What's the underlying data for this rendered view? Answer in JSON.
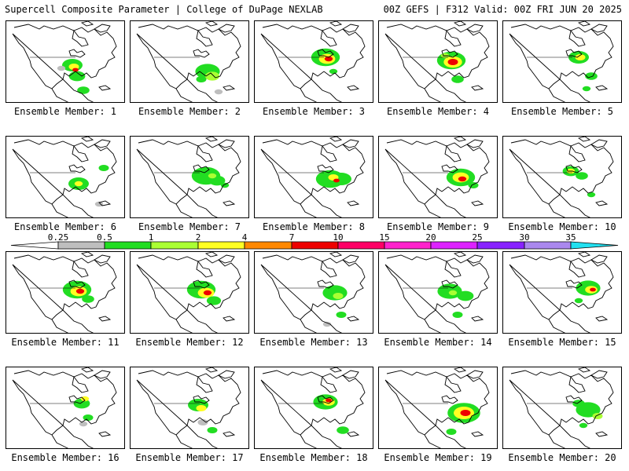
{
  "header": {
    "left": "Supercell Composite Parameter | College of DuPage NEXLAB",
    "right": "00Z GEFS | F312 Valid: 00Z FRI JUN 20 2025"
  },
  "colorbar": {
    "thresholds": [
      "0.25",
      "0.5",
      "1",
      "2",
      "4",
      "7",
      "10",
      "15",
      "20",
      "25",
      "30",
      "35"
    ],
    "colors": [
      "#bebebe",
      "#22dd22",
      "#aaff33",
      "#ffff22",
      "#ff8800",
      "#ee0000",
      "#ff0066",
      "#ff22cc",
      "#dd22ff",
      "#8822ff",
      "#aa88ee",
      "#22e0f0"
    ]
  },
  "members": [
    {
      "label": "Ensemble Member: 1"
    },
    {
      "label": "Ensemble Member: 2"
    },
    {
      "label": "Ensemble Member: 3"
    },
    {
      "label": "Ensemble Member: 4"
    },
    {
      "label": "Ensemble Member: 5"
    },
    {
      "label": "Ensemble Member: 6"
    },
    {
      "label": "Ensemble Member: 7"
    },
    {
      "label": "Ensemble Member: 8"
    },
    {
      "label": "Ensemble Member: 9"
    },
    {
      "label": "Ensemble Member: 10"
    },
    {
      "label": "Ensemble Member: 11"
    },
    {
      "label": "Ensemble Member: 12"
    },
    {
      "label": "Ensemble Member: 13"
    },
    {
      "label": "Ensemble Member: 14"
    },
    {
      "label": "Ensemble Member: 15"
    },
    {
      "label": "Ensemble Member: 16"
    },
    {
      "label": "Ensemble Member: 17"
    },
    {
      "label": "Ensemble Member: 18"
    },
    {
      "label": "Ensemble Member: 19"
    },
    {
      "label": "Ensemble Member: 20"
    }
  ]
}
